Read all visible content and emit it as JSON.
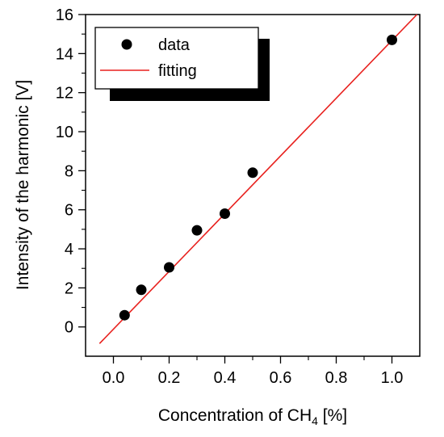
{
  "chart_data": {
    "type": "scatter",
    "title": "",
    "xlabel": "Concentration of CH",
    "xlabel_sub": "4",
    "xlabel_unit": " [%]",
    "ylabel": "Intensity of the harmonic [V]",
    "xlim": [
      -0.1,
      1.1
    ],
    "ylim": [
      -1.5,
      16
    ],
    "x_ticks": [
      0.0,
      0.2,
      0.4,
      0.6,
      0.8,
      1.0
    ],
    "x_tick_labels": [
      "0.0",
      "0.2",
      "0.4",
      "0.6",
      "0.8",
      "1.0"
    ],
    "y_ticks": [
      0,
      2,
      4,
      6,
      8,
      10,
      12,
      14,
      16
    ],
    "y_tick_labels": [
      "0",
      "2",
      "4",
      "6",
      "8",
      "10",
      "12",
      "14",
      "16"
    ],
    "grid": false,
    "legend_position": "top-left",
    "series": [
      {
        "name": "data",
        "kind": "scatter",
        "color": "#000000",
        "points": [
          {
            "x": 0.04,
            "y": 0.6
          },
          {
            "x": 0.1,
            "y": 1.9
          },
          {
            "x": 0.2,
            "y": 3.05
          },
          {
            "x": 0.3,
            "y": 4.95
          },
          {
            "x": 0.4,
            "y": 5.8
          },
          {
            "x": 0.5,
            "y": 7.9
          },
          {
            "x": 1.0,
            "y": 14.7
          }
        ]
      },
      {
        "name": "fitting",
        "kind": "line",
        "color": "#e8211e",
        "points": [
          {
            "x": -0.05,
            "y": -0.85
          },
          {
            "x": 1.09,
            "y": 16.0
          }
        ]
      }
    ]
  }
}
